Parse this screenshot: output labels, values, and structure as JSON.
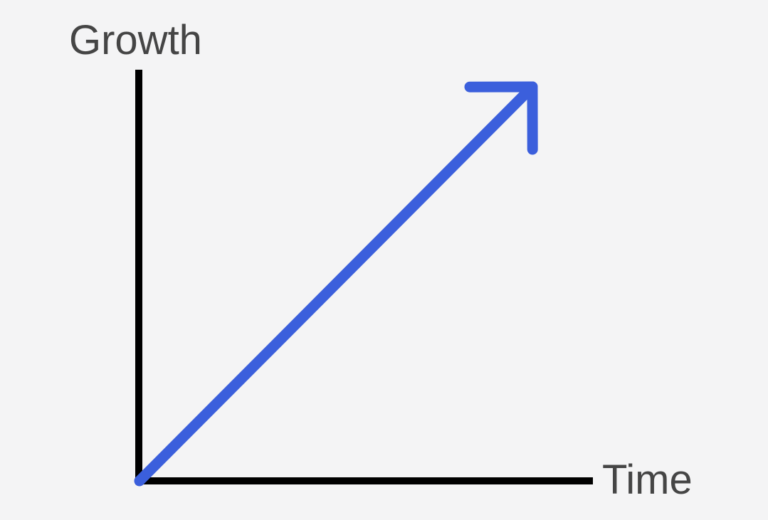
{
  "chart_data": {
    "type": "line",
    "ylabel": "Growth",
    "xlabel": "Time",
    "x": [
      0,
      1
    ],
    "series": [
      {
        "values": [
          0,
          1
        ],
        "arrowhead": true
      }
    ],
    "xlim": [
      0,
      1
    ],
    "ylim": [
      0,
      1
    ],
    "grid": false,
    "colors": {
      "background": "#f4f4f5",
      "axis": "#000000",
      "series": "#3b5fdc",
      "text": "#454545"
    }
  }
}
